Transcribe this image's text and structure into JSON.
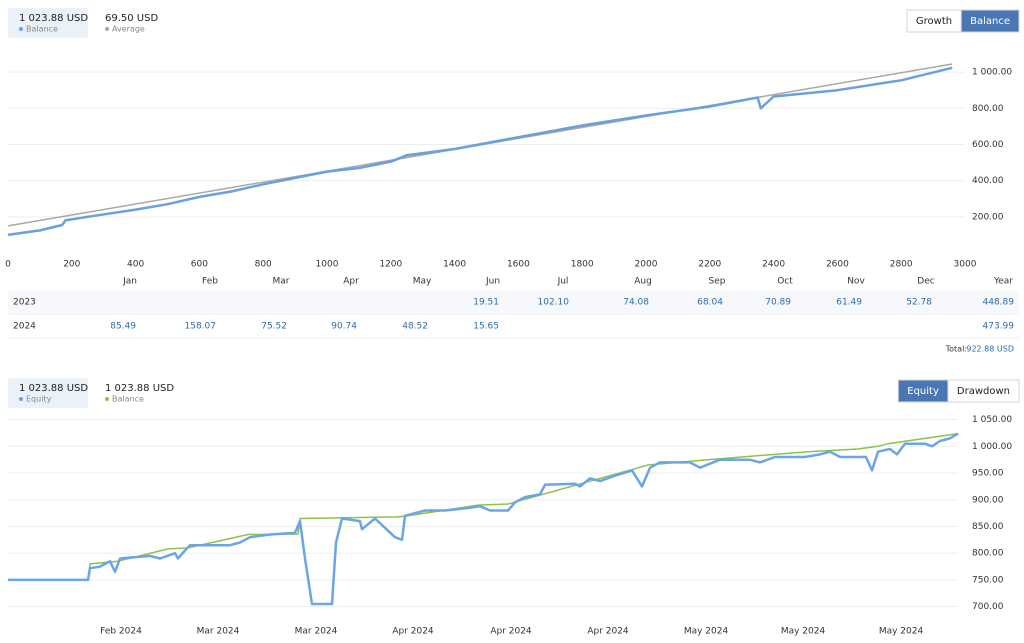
{
  "chart_data": [
    {
      "type": "line",
      "legend_values": [
        "1 023.88 USD",
        "69.50 USD"
      ],
      "buttons": [
        "Growth",
        "Balance"
      ],
      "selected": "Balance",
      "series": [
        {
          "name": "Balance",
          "color": "#6a9fe0",
          "x": [
            0,
            100,
            170,
            180,
            250,
            400,
            500,
            600,
            700,
            800,
            1000,
            1100,
            1200,
            1250,
            1400,
            1600,
            1800,
            2000,
            2200,
            2350,
            2360,
            2400,
            2600,
            2800,
            2960
          ],
          "values": [
            100,
            125,
            155,
            180,
            200,
            240,
            270,
            310,
            340,
            380,
            450,
            470,
            505,
            540,
            575,
            640,
            705,
            760,
            810,
            860,
            800,
            865,
            900,
            955,
            1023.88
          ]
        },
        {
          "name": "Average",
          "color": "#a8a8a8",
          "x": [
            0,
            2960
          ],
          "values": [
            150,
            1045
          ]
        }
      ],
      "xlim": [
        0,
        3000
      ],
      "xticks": [
        0,
        200,
        400,
        600,
        800,
        1000,
        1200,
        1400,
        1600,
        1800,
        2000,
        2200,
        2400,
        2600,
        2800,
        3000
      ],
      "ylim": [
        0,
        1150
      ],
      "yticks": [
        {
          "value": 200,
          "label": "200.00"
        },
        {
          "value": 400,
          "label": "400.00"
        },
        {
          "value": 600,
          "label": "600.00"
        },
        {
          "value": 800,
          "label": "800.00"
        },
        {
          "value": 1000,
          "label": "1 000.00"
        }
      ],
      "grid": true
    },
    {
      "type": "line",
      "legend_values": [
        "1 023.88 USD",
        "1 023.88 USD"
      ],
      "buttons": [
        "Equity",
        "Drawdown"
      ],
      "selected": "Equity",
      "series": [
        {
          "name": "Equity",
          "color": "#6aa5e8",
          "x": [
            0,
            80,
            82,
            92,
            102,
            107,
            112,
            142,
            152,
            167,
            170,
            177,
            182,
            222,
            232,
            242,
            262,
            287,
            292,
            297,
            304,
            324,
            328,
            334,
            352,
            354,
            367,
            387,
            394,
            397,
            417,
            437,
            462,
            472,
            482,
            500,
            507,
            517,
            532,
            537,
            567,
            572,
            582,
            592,
            607,
            624,
            634,
            642,
            652,
            682,
            692,
            712,
            742,
            752,
            767,
            797,
            812,
            822,
            832,
            858,
            864,
            870,
            882,
            889,
            897,
            917,
            924,
            932,
            942,
            950
          ],
          "values": [
            750,
            750,
            772,
            775,
            785,
            765,
            790,
            795,
            790,
            800,
            790,
            805,
            815,
            815,
            820,
            830,
            835,
            838,
            860,
            790,
            705,
            705,
            820,
            865,
            860,
            845,
            865,
            830,
            825,
            870,
            880,
            880,
            885,
            888,
            880,
            880,
            895,
            905,
            910,
            928,
            930,
            925,
            940,
            935,
            945,
            955,
            925,
            960,
            970,
            970,
            960,
            975,
            975,
            970,
            980,
            980,
            985,
            990,
            980,
            980,
            955,
            990,
            995,
            985,
            1005,
            1005,
            1000,
            1010,
            1015,
            1023.88
          ]
        },
        {
          "name": "Balance",
          "color": "#8bc34a",
          "x": [
            0,
            80,
            82,
            110,
            160,
            180,
            240,
            290,
            292,
            390,
            400,
            470,
            500,
            640,
            700,
            800,
            850,
            870,
            880,
            950
          ],
          "values": [
            750,
            750,
            780,
            785,
            808,
            810,
            835,
            836,
            865,
            868,
            870,
            890,
            892,
            965,
            975,
            990,
            995,
            1000,
            1005,
            1023.88
          ]
        }
      ],
      "xlim": [
        0,
        950
      ],
      "xticks": [
        {
          "value": 113,
          "label": "Feb 2024"
        },
        {
          "value": 210,
          "label": "Mar 2024"
        },
        {
          "value": 308,
          "label": "Mar 2024"
        },
        {
          "value": 405,
          "label": "Apr 2024"
        },
        {
          "value": 503,
          "label": "Apr 2024"
        },
        {
          "value": 600,
          "label": "Apr 2024"
        },
        {
          "value": 698,
          "label": "May 2024"
        },
        {
          "value": 795,
          "label": "May 2024"
        },
        {
          "value": 893,
          "label": "May 2024"
        }
      ],
      "ylim": [
        675,
        1068
      ],
      "yticks": [
        {
          "value": 700,
          "label": "700.00"
        },
        {
          "value": 750,
          "label": "750.00"
        },
        {
          "value": 800,
          "label": "800.00"
        },
        {
          "value": 850,
          "label": "850.00"
        },
        {
          "value": 900,
          "label": "900.00"
        },
        {
          "value": 950,
          "label": "950.00"
        },
        {
          "value": 1000,
          "label": "1 000.00"
        },
        {
          "value": 1050,
          "label": "1 050.00"
        }
      ],
      "grid": true
    }
  ],
  "table": {
    "columns": [
      "Jan",
      "Feb",
      "Mar",
      "Apr",
      "May",
      "Jun",
      "Jul",
      "Aug",
      "Sep",
      "Oct",
      "Nov",
      "Dec",
      "Year"
    ],
    "rows": [
      {
        "label": "2023",
        "cells": [
          null,
          null,
          null,
          null,
          null,
          "19.51",
          "102.10",
          "74.08",
          "68.04",
          "70.89",
          "61.49",
          "52.78",
          "448.89"
        ]
      },
      {
        "label": "2024",
        "cells": [
          "85.49",
          "158.07",
          "75.52",
          "90.74",
          "48.52",
          "15.65",
          null,
          null,
          null,
          null,
          null,
          null,
          "473.99"
        ]
      }
    ],
    "total": {
      "label": "Total:",
      "value": "922.88 USD"
    }
  }
}
